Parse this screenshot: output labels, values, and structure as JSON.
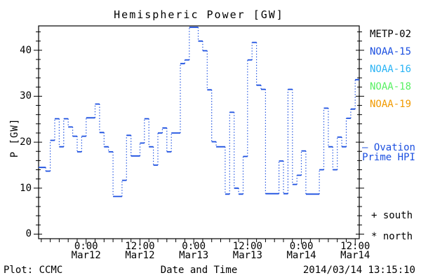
{
  "title": "Hemispheric Power [GW]",
  "axes": {
    "ylabel": "P [GW]",
    "yticks": [
      0,
      10,
      20,
      30,
      40
    ],
    "y_minor_step": 2,
    "xticks": [
      {
        "hour": 12,
        "time": "0:00",
        "date": "Mar12"
      },
      {
        "hour": 24,
        "time": "12:00",
        "date": "Mar12"
      },
      {
        "hour": 36,
        "time": "0:00",
        "date": "Mar13"
      },
      {
        "hour": 48,
        "time": "12:00",
        "date": "Mar13"
      },
      {
        "hour": 60,
        "time": "0:00",
        "date": "Mar14"
      },
      {
        "hour": 72,
        "time": "12:00",
        "date": "Mar14"
      }
    ],
    "x_minor_step_hours": 2
  },
  "footer": {
    "credit": "Plot: CCMC",
    "xlabel": "Date and Time",
    "timestamp": "2014/03/14 13:15:10"
  },
  "legend": {
    "satellites": [
      {
        "label": "METP-02",
        "color": "#000000"
      },
      {
        "label": "NOAA-15",
        "color": "#1b4fe0"
      },
      {
        "label": "NOAA-16",
        "color": "#2ab4f5"
      },
      {
        "label": "NOAA-18",
        "color": "#58f163"
      },
      {
        "label": "NOAA-19",
        "color": "#f19a00"
      }
    ],
    "ovation": {
      "marker": "—",
      "name": "Ovation Prime HPI",
      "color": "#1b4fe0"
    },
    "hemisphere_markers": [
      {
        "marker": "+",
        "label": "south"
      },
      {
        "marker": "*",
        "label": "north"
      }
    ]
  },
  "chart_data": {
    "type": "line",
    "step": true,
    "title": "Hemispheric Power [GW]",
    "xlabel": "Date and Time",
    "ylabel": "P [GW]",
    "grid": false,
    "legend_position": "right",
    "x_hours_origin": "2014-03-11 12:00",
    "x_axis_hours_range": [
      1.4,
      72.9
    ],
    "ylim": [
      0,
      45.3
    ],
    "ylim_draw": [
      -1,
      45.3
    ],
    "xticklabels": [
      "0:00 Mar12",
      "12:00 Mar12",
      "0:00 Mar13",
      "12:00 Mar13",
      "0:00 Mar14",
      "12:00 Mar14"
    ],
    "yticks": [
      0,
      10,
      20,
      30,
      40
    ],
    "series": [
      {
        "name": "Ovation Prime HPI",
        "color": "#1b4fe0",
        "start": "2014-03-11 14:00",
        "start_hour": 2,
        "interval_hours": 1,
        "values": [
          14.5,
          13.7,
          20.4,
          25.1,
          19.0,
          25.1,
          23.3,
          21.3,
          17.9,
          21.3,
          25.3,
          25.3,
          28.3,
          22.1,
          19.0,
          17.9,
          8.2,
          8.2,
          11.7,
          21.5,
          17.0,
          17.0,
          19.8,
          25.1,
          19.0,
          15.0,
          22.0,
          23.1,
          17.9,
          22.0,
          22.0,
          37.1,
          37.9,
          45.0,
          45.0,
          42.0,
          39.9,
          31.4,
          20.1,
          19.0,
          19.0,
          8.7,
          26.5,
          10.0,
          8.7,
          16.9,
          37.9,
          41.7,
          32.4,
          31.5,
          8.8,
          8.8,
          8.8,
          15.9,
          8.8,
          31.5,
          10.8,
          12.8,
          18.1,
          8.7,
          8.7,
          8.7,
          14.0,
          27.4,
          19.0,
          14.0,
          21.1,
          19.0,
          25.2,
          27.2,
          33.6
        ]
      }
    ]
  }
}
